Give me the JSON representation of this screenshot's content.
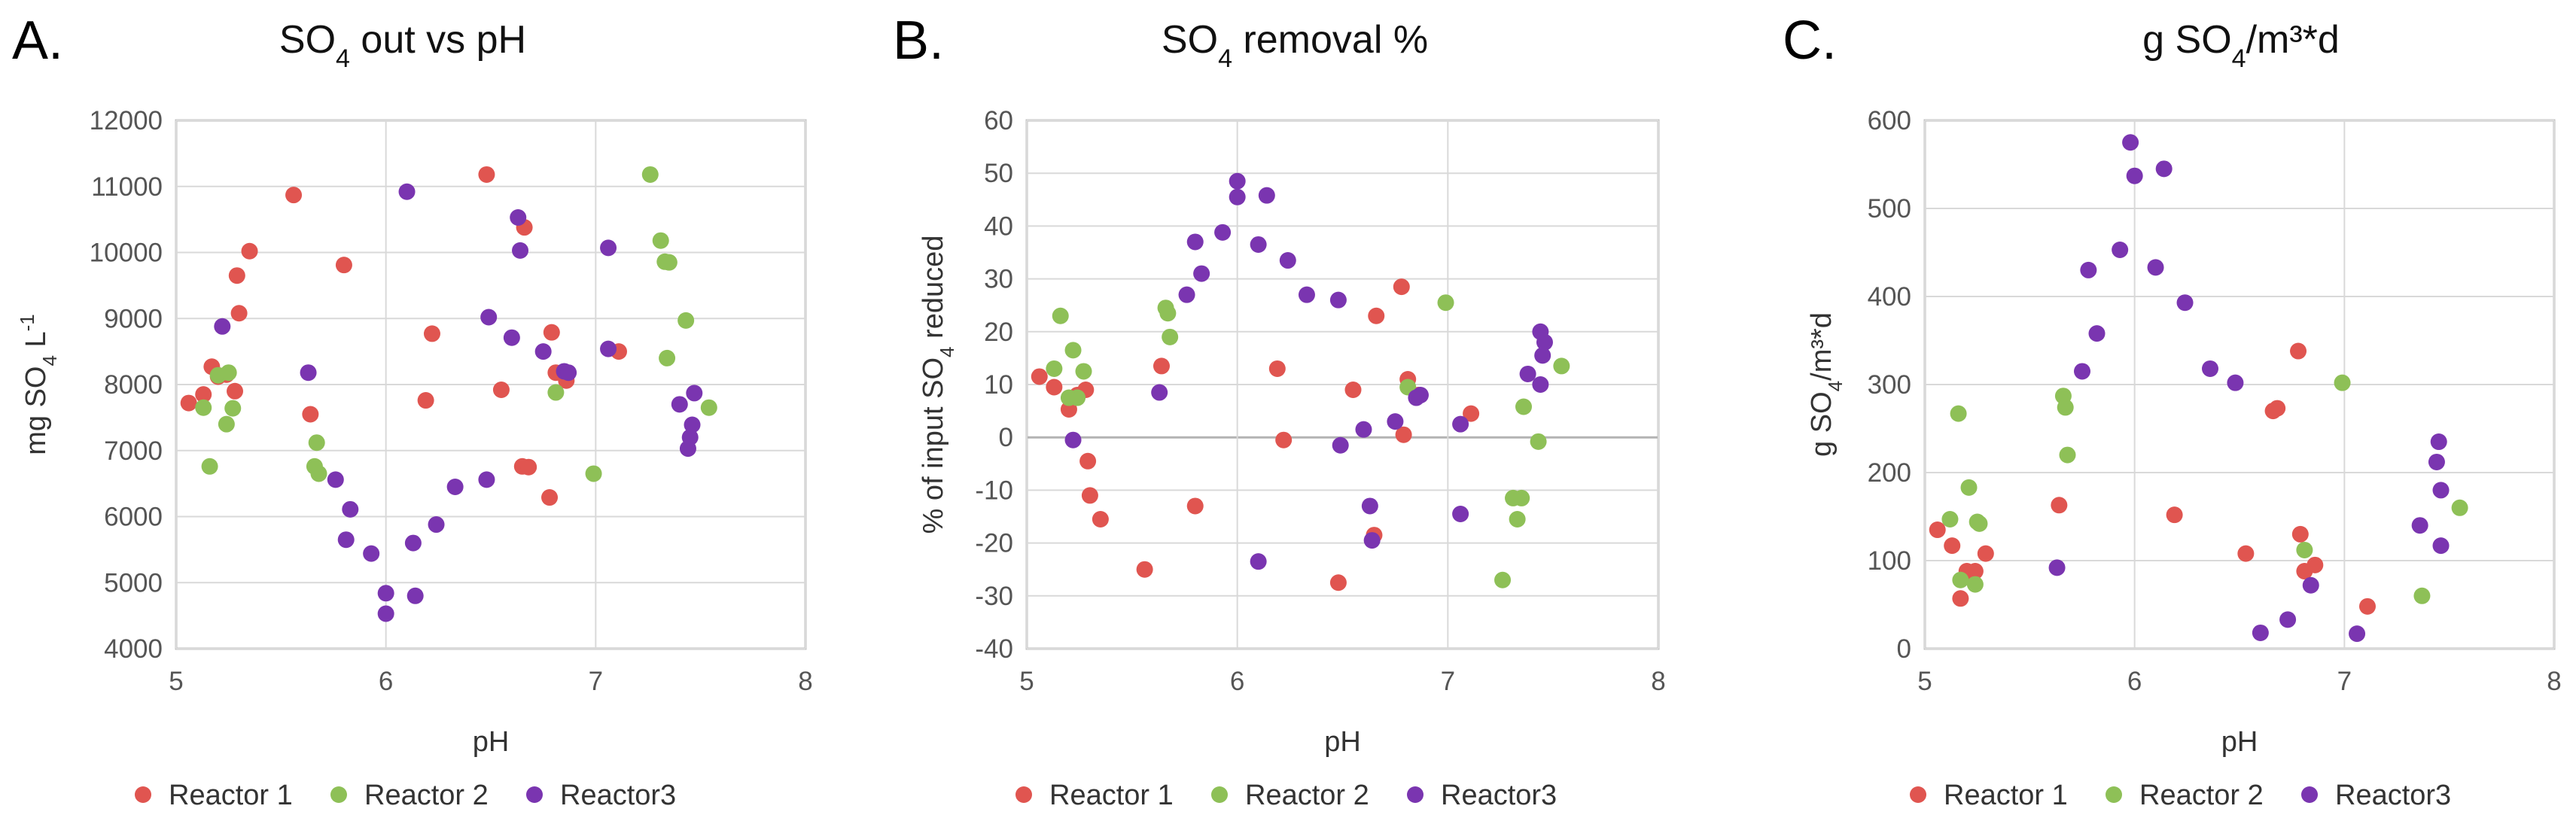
{
  "colors": {
    "Reactor 1": "#e05550",
    "Reactor 2": "#8ec057",
    "Reactor3": "#7a35b0",
    "grid": "#d9d9d9",
    "axis": "#bfbfbf",
    "zero": "#bfbfbf"
  },
  "legend_labels": [
    "Reactor 1",
    "Reactor 2",
    "Reactor3"
  ],
  "chart_data": [
    {
      "type": "scatter",
      "panel": "A.",
      "title": {
        "pre": "SO",
        "sub": "4",
        "post": " out vs pH"
      },
      "xlabel": "pH",
      "ylabel": {
        "pre": "mg SO",
        "sub": "4",
        "mid": " L",
        "sup": "-1"
      },
      "xlim": [
        5,
        8
      ],
      "ylim": [
        4000,
        12000
      ],
      "xticks": [
        "5",
        "6",
        "7",
        "8"
      ],
      "yticks": [
        "4000",
        "5000",
        "6000",
        "7000",
        "8000",
        "9000",
        "10000",
        "11000",
        "12000"
      ],
      "series": [
        {
          "name": "Reactor 1",
          "points": [
            [
              5.06,
              7720
            ],
            [
              5.13,
              7850
            ],
            [
              5.17,
              8270
            ],
            [
              5.2,
              8120
            ],
            [
              5.24,
              8150
            ],
            [
              5.28,
              7900
            ],
            [
              5.29,
              9650
            ],
            [
              5.3,
              9080
            ],
            [
              5.35,
              10020
            ],
            [
              5.56,
              10870
            ],
            [
              5.64,
              7550
            ],
            [
              5.8,
              9810
            ],
            [
              6.19,
              7760
            ],
            [
              6.22,
              8770
            ],
            [
              6.48,
              11180
            ],
            [
              6.55,
              7920
            ],
            [
              6.65,
              6760
            ],
            [
              6.66,
              10380
            ],
            [
              6.68,
              6750
            ],
            [
              6.78,
              6290
            ],
            [
              6.79,
              8790
            ],
            [
              6.81,
              8180
            ],
            [
              6.86,
              8060
            ],
            [
              7.11,
              8500
            ]
          ]
        },
        {
          "name": "Reactor 2",
          "points": [
            [
              5.13,
              7650
            ],
            [
              5.16,
              6760
            ],
            [
              5.2,
              8140
            ],
            [
              5.24,
              7400
            ],
            [
              5.25,
              8180
            ],
            [
              5.27,
              7640
            ],
            [
              5.66,
              6760
            ],
            [
              5.67,
              7120
            ],
            [
              5.68,
              6650
            ],
            [
              6.81,
              7880
            ],
            [
              6.99,
              6650
            ],
            [
              7.26,
              11180
            ],
            [
              7.31,
              10180
            ],
            [
              7.33,
              9860
            ],
            [
              7.35,
              9850
            ],
            [
              7.34,
              8400
            ],
            [
              7.43,
              8970
            ],
            [
              7.54,
              7650
            ]
          ]
        },
        {
          "name": "Reactor3",
          "points": [
            [
              5.22,
              8880
            ],
            [
              5.63,
              8180
            ],
            [
              5.76,
              6560
            ],
            [
              5.81,
              5650
            ],
            [
              5.83,
              6110
            ],
            [
              5.93,
              5440
            ],
            [
              6.0,
              4840
            ],
            [
              6.0,
              4530
            ],
            [
              6.1,
              10920
            ],
            [
              6.13,
              5600
            ],
            [
              6.14,
              4800
            ],
            [
              6.24,
              5880
            ],
            [
              6.33,
              6450
            ],
            [
              6.48,
              6560
            ],
            [
              6.49,
              9020
            ],
            [
              6.6,
              8710
            ],
            [
              6.63,
              10530
            ],
            [
              6.64,
              10030
            ],
            [
              6.75,
              8500
            ],
            [
              6.85,
              8200
            ],
            [
              6.87,
              8180
            ],
            [
              7.06,
              10070
            ],
            [
              7.06,
              8540
            ],
            [
              7.4,
              7700
            ],
            [
              7.44,
              7030
            ],
            [
              7.45,
              7200
            ],
            [
              7.46,
              7390
            ],
            [
              7.47,
              7870
            ]
          ]
        }
      ]
    },
    {
      "type": "scatter",
      "panel": "B.",
      "title": {
        "pre": "SO",
        "sub": "4",
        "post": " removal %"
      },
      "xlabel": "pH",
      "ylabel": {
        "pre": "% of input SO",
        "sub": "4",
        "mid": " reduced",
        "sup": ""
      },
      "xlim": [
        5,
        8
      ],
      "ylim": [
        -40,
        60
      ],
      "xticks": [
        "5",
        "6",
        "7",
        "8"
      ],
      "yticks": [
        "-40",
        "-30",
        "-20",
        "-10",
        "0",
        "10",
        "20",
        "30",
        "40",
        "50",
        "60"
      ],
      "series": [
        {
          "name": "Reactor 1",
          "points": [
            [
              5.06,
              11.5
            ],
            [
              5.13,
              9.5
            ],
            [
              5.2,
              5.3
            ],
            [
              5.24,
              8
            ],
            [
              5.28,
              9
            ],
            [
              5.29,
              -4.5
            ],
            [
              5.3,
              -11
            ],
            [
              5.35,
              -15.5
            ],
            [
              5.56,
              -25
            ],
            [
              5.64,
              13.5
            ],
            [
              5.8,
              -13
            ],
            [
              6.19,
              13
            ],
            [
              6.22,
              -0.5
            ],
            [
              6.48,
              -27.5
            ],
            [
              6.55,
              9
            ],
            [
              6.65,
              -18.5
            ],
            [
              6.66,
              23
            ],
            [
              6.78,
              28.5
            ],
            [
              6.79,
              0.5
            ],
            [
              6.81,
              11
            ],
            [
              6.86,
              8
            ],
            [
              7.11,
              4.5
            ]
          ]
        },
        {
          "name": "Reactor 2",
          "points": [
            [
              5.13,
              13
            ],
            [
              5.16,
              23
            ],
            [
              5.2,
              7.5
            ],
            [
              5.22,
              16.5
            ],
            [
              5.24,
              7.5
            ],
            [
              5.27,
              12.5
            ],
            [
              5.66,
              24.5
            ],
            [
              5.67,
              23.5
            ],
            [
              5.68,
              19
            ],
            [
              6.81,
              9.5
            ],
            [
              6.99,
              25.5
            ],
            [
              7.26,
              -27
            ],
            [
              7.31,
              -11.5
            ],
            [
              7.33,
              -15.5
            ],
            [
              7.35,
              -11.5
            ],
            [
              7.36,
              5.8
            ],
            [
              7.43,
              -0.8
            ],
            [
              7.54,
              13.5
            ]
          ]
        },
        {
          "name": "Reactor3",
          "points": [
            [
              5.22,
              -0.5
            ],
            [
              5.63,
              8.5
            ],
            [
              5.76,
              27
            ],
            [
              5.8,
              37
            ],
            [
              5.83,
              31
            ],
            [
              5.93,
              38.8
            ],
            [
              6.0,
              48.5
            ],
            [
              6.0,
              45.5
            ],
            [
              6.1,
              -23.5
            ],
            [
              6.1,
              36.5
            ],
            [
              6.14,
              45.8
            ],
            [
              6.24,
              33.5
            ],
            [
              6.33,
              27
            ],
            [
              6.48,
              26
            ],
            [
              6.49,
              -1.5
            ],
            [
              6.6,
              1.5
            ],
            [
              6.63,
              -13
            ],
            [
              6.64,
              -19.5
            ],
            [
              6.75,
              3
            ],
            [
              6.85,
              7.5
            ],
            [
              6.87,
              8
            ],
            [
              7.06,
              -14.5
            ],
            [
              7.06,
              2.5
            ],
            [
              7.38,
              12
            ],
            [
              7.44,
              10
            ],
            [
              7.45,
              15.5
            ],
            [
              7.46,
              18
            ],
            [
              7.44,
              20
            ]
          ]
        }
      ]
    },
    {
      "type": "scatter",
      "panel": "C.",
      "title": {
        "pre": "g SO",
        "sub": "4",
        "post": "/m³*d"
      },
      "xlabel": "pH",
      "ylabel": {
        "pre": "g SO",
        "sub": "4",
        "mid": "/m³*d",
        "sup": ""
      },
      "xlim": [
        5,
        8
      ],
      "ylim": [
        0,
        600
      ],
      "xticks": [
        "5",
        "6",
        "7",
        "8"
      ],
      "yticks": [
        "0",
        "100",
        "200",
        "300",
        "400",
        "500",
        "600"
      ],
      "series": [
        {
          "name": "Reactor 1",
          "points": [
            [
              5.06,
              135
            ],
            [
              5.13,
              117
            ],
            [
              5.17,
              57
            ],
            [
              5.2,
              88
            ],
            [
              5.24,
              88
            ],
            [
              5.29,
              108
            ],
            [
              5.64,
              163
            ],
            [
              6.19,
              152
            ],
            [
              6.53,
              108
            ],
            [
              6.66,
              270
            ],
            [
              6.68,
              273
            ],
            [
              6.78,
              338
            ],
            [
              6.79,
              130
            ],
            [
              6.81,
              88
            ],
            [
              6.86,
              95
            ],
            [
              7.11,
              48
            ]
          ]
        },
        {
          "name": "Reactor 2",
          "points": [
            [
              5.12,
              147
            ],
            [
              5.16,
              267
            ],
            [
              5.17,
              78
            ],
            [
              5.21,
              183
            ],
            [
              5.24,
              73
            ],
            [
              5.25,
              144
            ],
            [
              5.26,
              142
            ],
            [
              5.66,
              287
            ],
            [
              5.67,
              274
            ],
            [
              5.68,
              220
            ],
            [
              6.81,
              112
            ],
            [
              6.99,
              302
            ],
            [
              7.37,
              60
            ],
            [
              7.55,
              160
            ]
          ]
        },
        {
          "name": "Reactor3",
          "points": [
            [
              5.63,
              92
            ],
            [
              5.75,
              315
            ],
            [
              5.78,
              430
            ],
            [
              5.82,
              358
            ],
            [
              5.93,
              453
            ],
            [
              5.98,
              575
            ],
            [
              6.0,
              537
            ],
            [
              6.1,
              433
            ],
            [
              6.14,
              545
            ],
            [
              6.24,
              393
            ],
            [
              6.36,
              318
            ],
            [
              6.48,
              302
            ],
            [
              6.6,
              18
            ],
            [
              6.73,
              33
            ],
            [
              6.84,
              72
            ],
            [
              7.06,
              17
            ],
            [
              7.36,
              140
            ],
            [
              7.44,
              212
            ],
            [
              7.45,
              235
            ],
            [
              7.46,
              180
            ],
            [
              7.46,
              117
            ]
          ]
        }
      ]
    }
  ]
}
